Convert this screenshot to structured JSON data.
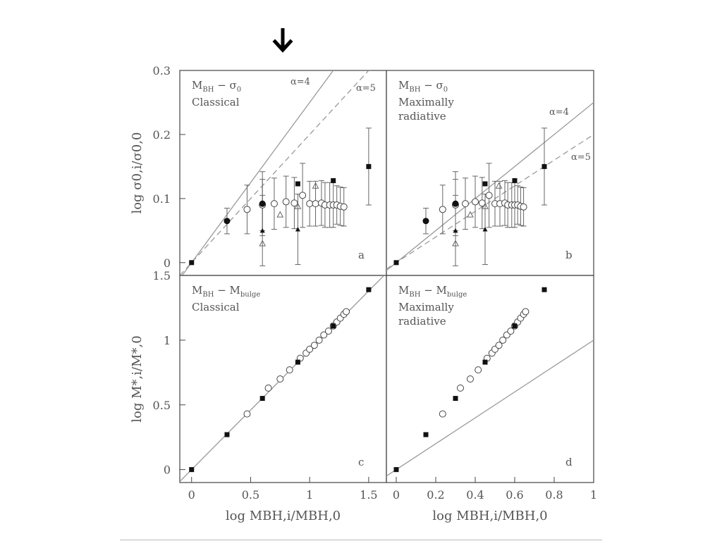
{
  "slide": {
    "pointer_icon": "down-arrow-icon"
  },
  "chart_data": [
    {
      "panel": "a",
      "type": "scatter",
      "label_line1": "M_BH − σ_0",
      "label_line2": "Classical",
      "panel_letter": "a",
      "ylabel": "log σ0,i/σ0,0",
      "xlim": [
        -0.1,
        1.65
      ],
      "ylim": [
        -0.02,
        0.3
      ],
      "yticks": [
        0,
        0.1,
        0.2,
        0.3
      ],
      "ytick_labels": [
        "0",
        "0.1",
        "0.2",
        "0.3"
      ],
      "lines": [
        {
          "name": "α=4",
          "style": "solid",
          "slope": 0.25
        },
        {
          "name": "α=5",
          "style": "dashed",
          "slope": 0.2
        }
      ],
      "points_filled_square": [
        {
          "x": 0.0,
          "y": 0.0
        },
        {
          "x": 0.9,
          "y": 0.123
        },
        {
          "x": 1.2,
          "y": 0.128
        },
        {
          "x": 1.5,
          "y": 0.15,
          "err": 0.06
        }
      ],
      "points_filled_circle": [
        {
          "x": 0.3,
          "y": 0.065,
          "err": 0.02
        },
        {
          "x": 0.6,
          "y": 0.092,
          "err": 0.05
        }
      ],
      "points_filled_triangle": [
        {
          "x": 0.6,
          "y": 0.05,
          "err": 0.055
        },
        {
          "x": 0.9,
          "y": 0.052,
          "err": 0.055
        }
      ],
      "points_open_triangle": [
        {
          "x": 0.6,
          "y": 0.03
        },
        {
          "x": 0.75,
          "y": 0.075
        },
        {
          "x": 0.9,
          "y": 0.088
        },
        {
          "x": 1.05,
          "y": 0.12
        }
      ],
      "points_open_circle": [
        {
          "x": 0.47,
          "y": 0.083,
          "err": 0.038
        },
        {
          "x": 0.6,
          "y": 0.09,
          "err": 0.04
        },
        {
          "x": 0.7,
          "y": 0.092,
          "err": 0.04
        },
        {
          "x": 0.8,
          "y": 0.095,
          "err": 0.04
        },
        {
          "x": 0.87,
          "y": 0.093,
          "err": 0.04
        },
        {
          "x": 0.94,
          "y": 0.105,
          "err": 0.05
        },
        {
          "x": 1.0,
          "y": 0.092,
          "err": 0.035
        },
        {
          "x": 1.05,
          "y": 0.092,
          "err": 0.035
        },
        {
          "x": 1.1,
          "y": 0.093,
          "err": 0.035
        },
        {
          "x": 1.13,
          "y": 0.09,
          "err": 0.035
        },
        {
          "x": 1.17,
          "y": 0.09,
          "err": 0.035
        },
        {
          "x": 1.2,
          "y": 0.09,
          "err": 0.035
        },
        {
          "x": 1.23,
          "y": 0.09,
          "err": 0.03
        },
        {
          "x": 1.26,
          "y": 0.088,
          "err": 0.03
        },
        {
          "x": 1.29,
          "y": 0.087,
          "err": 0.03
        }
      ]
    },
    {
      "panel": "b",
      "type": "scatter",
      "label_line1": "M_BH − σ_0",
      "label_line2": "Maximally",
      "label_line3": "radiative",
      "panel_letter": "b",
      "xlim": [
        -0.05,
        1.0
      ],
      "ylim": [
        -0.02,
        0.3
      ],
      "lines": [
        {
          "name": "α=4",
          "style": "solid",
          "slope": 0.25
        },
        {
          "name": "α=5",
          "style": "dashed",
          "slope": 0.2
        }
      ],
      "points_filled_square": [
        {
          "x": 0.0,
          "y": 0.0
        },
        {
          "x": 0.45,
          "y": 0.123
        },
        {
          "x": 0.6,
          "y": 0.128
        },
        {
          "x": 0.75,
          "y": 0.15,
          "err": 0.06
        }
      ],
      "points_filled_circle": [
        {
          "x": 0.15,
          "y": 0.065,
          "err": 0.02
        },
        {
          "x": 0.3,
          "y": 0.092,
          "err": 0.05
        }
      ],
      "points_filled_triangle": [
        {
          "x": 0.3,
          "y": 0.05,
          "err": 0.055
        },
        {
          "x": 0.45,
          "y": 0.052,
          "err": 0.055
        }
      ],
      "points_open_triangle": [
        {
          "x": 0.3,
          "y": 0.03
        },
        {
          "x": 0.375,
          "y": 0.075
        },
        {
          "x": 0.45,
          "y": 0.088
        },
        {
          "x": 0.52,
          "y": 0.12
        }
      ],
      "points_open_circle": [
        {
          "x": 0.235,
          "y": 0.083,
          "err": 0.038
        },
        {
          "x": 0.3,
          "y": 0.09,
          "err": 0.04
        },
        {
          "x": 0.35,
          "y": 0.092,
          "err": 0.04
        },
        {
          "x": 0.4,
          "y": 0.095,
          "err": 0.04
        },
        {
          "x": 0.435,
          "y": 0.093,
          "err": 0.04
        },
        {
          "x": 0.47,
          "y": 0.105,
          "err": 0.05
        },
        {
          "x": 0.5,
          "y": 0.092,
          "err": 0.035
        },
        {
          "x": 0.525,
          "y": 0.092,
          "err": 0.035
        },
        {
          "x": 0.55,
          "y": 0.093,
          "err": 0.035
        },
        {
          "x": 0.565,
          "y": 0.09,
          "err": 0.035
        },
        {
          "x": 0.585,
          "y": 0.09,
          "err": 0.035
        },
        {
          "x": 0.6,
          "y": 0.09,
          "err": 0.035
        },
        {
          "x": 0.615,
          "y": 0.09,
          "err": 0.03
        },
        {
          "x": 0.63,
          "y": 0.088,
          "err": 0.03
        },
        {
          "x": 0.645,
          "y": 0.087,
          "err": 0.03
        }
      ]
    },
    {
      "panel": "c",
      "type": "scatter",
      "label_line1": "M_BH − M_bulge",
      "label_line2": "Classical",
      "panel_letter": "c",
      "ylabel": "log M*,i/M*,0",
      "xlabel": "log MBH,i/MBH,0",
      "xlim": [
        -0.1,
        1.65
      ],
      "ylim": [
        -0.1,
        1.5
      ],
      "xticks": [
        0,
        0.5,
        1,
        1.5
      ],
      "xtick_labels": [
        "0",
        "0.5",
        "1",
        "1.5"
      ],
      "yticks": [
        0,
        0.5,
        1,
        1.5
      ],
      "ytick_labels": [
        "0",
        "0.5",
        "1",
        "1.5"
      ],
      "lines": [
        {
          "style": "solid",
          "slope": 0.92
        }
      ],
      "points_filled_square": [
        {
          "x": 0.0,
          "y": 0.0
        },
        {
          "x": 0.3,
          "y": 0.27
        },
        {
          "x": 0.6,
          "y": 0.55
        },
        {
          "x": 0.9,
          "y": 0.83
        },
        {
          "x": 1.2,
          "y": 1.11
        },
        {
          "x": 1.5,
          "y": 1.39
        }
      ],
      "points_open_circle": [
        {
          "x": 0.47,
          "y": 0.43
        },
        {
          "x": 0.65,
          "y": 0.63
        },
        {
          "x": 0.75,
          "y": 0.7
        },
        {
          "x": 0.83,
          "y": 0.77
        },
        {
          "x": 0.92,
          "y": 0.86
        },
        {
          "x": 0.97,
          "y": 0.9
        },
        {
          "x": 1.0,
          "y": 0.93
        },
        {
          "x": 1.04,
          "y": 0.96
        },
        {
          "x": 1.08,
          "y": 1.0
        },
        {
          "x": 1.12,
          "y": 1.04
        },
        {
          "x": 1.16,
          "y": 1.07
        },
        {
          "x": 1.2,
          "y": 1.11
        },
        {
          "x": 1.23,
          "y": 1.14
        },
        {
          "x": 1.26,
          "y": 1.17
        },
        {
          "x": 1.29,
          "y": 1.2
        },
        {
          "x": 1.31,
          "y": 1.22
        }
      ]
    },
    {
      "panel": "d",
      "type": "scatter",
      "label_line1": "M_BH − M_bulge",
      "label_line2": "Maximally",
      "label_line3": "radiative",
      "panel_letter": "d",
      "xlabel": "log MBH,i/MBH,0",
      "xlim": [
        -0.05,
        1.0
      ],
      "ylim": [
        -0.1,
        1.5
      ],
      "xticks": [
        0,
        0.2,
        0.4,
        0.6,
        0.8,
        1
      ],
      "xtick_labels": [
        "0",
        "0.2",
        "0.4",
        "0.6",
        "0.8",
        "1"
      ],
      "lines": [
        {
          "style": "solid",
          "slope": 1.0
        }
      ],
      "points_filled_square": [
        {
          "x": 0.0,
          "y": 0.0
        },
        {
          "x": 0.15,
          "y": 0.27
        },
        {
          "x": 0.3,
          "y": 0.55
        },
        {
          "x": 0.45,
          "y": 0.83
        },
        {
          "x": 0.6,
          "y": 1.11
        },
        {
          "x": 0.75,
          "y": 1.39
        }
      ],
      "points_open_circle": [
        {
          "x": 0.235,
          "y": 0.43
        },
        {
          "x": 0.325,
          "y": 0.63
        },
        {
          "x": 0.375,
          "y": 0.7
        },
        {
          "x": 0.415,
          "y": 0.77
        },
        {
          "x": 0.46,
          "y": 0.86
        },
        {
          "x": 0.485,
          "y": 0.9
        },
        {
          "x": 0.5,
          "y": 0.93
        },
        {
          "x": 0.52,
          "y": 0.96
        },
        {
          "x": 0.54,
          "y": 1.0
        },
        {
          "x": 0.56,
          "y": 1.04
        },
        {
          "x": 0.58,
          "y": 1.07
        },
        {
          "x": 0.6,
          "y": 1.11
        },
        {
          "x": 0.615,
          "y": 1.14
        },
        {
          "x": 0.63,
          "y": 1.17
        },
        {
          "x": 0.645,
          "y": 1.2
        },
        {
          "x": 0.655,
          "y": 1.22
        }
      ]
    }
  ]
}
